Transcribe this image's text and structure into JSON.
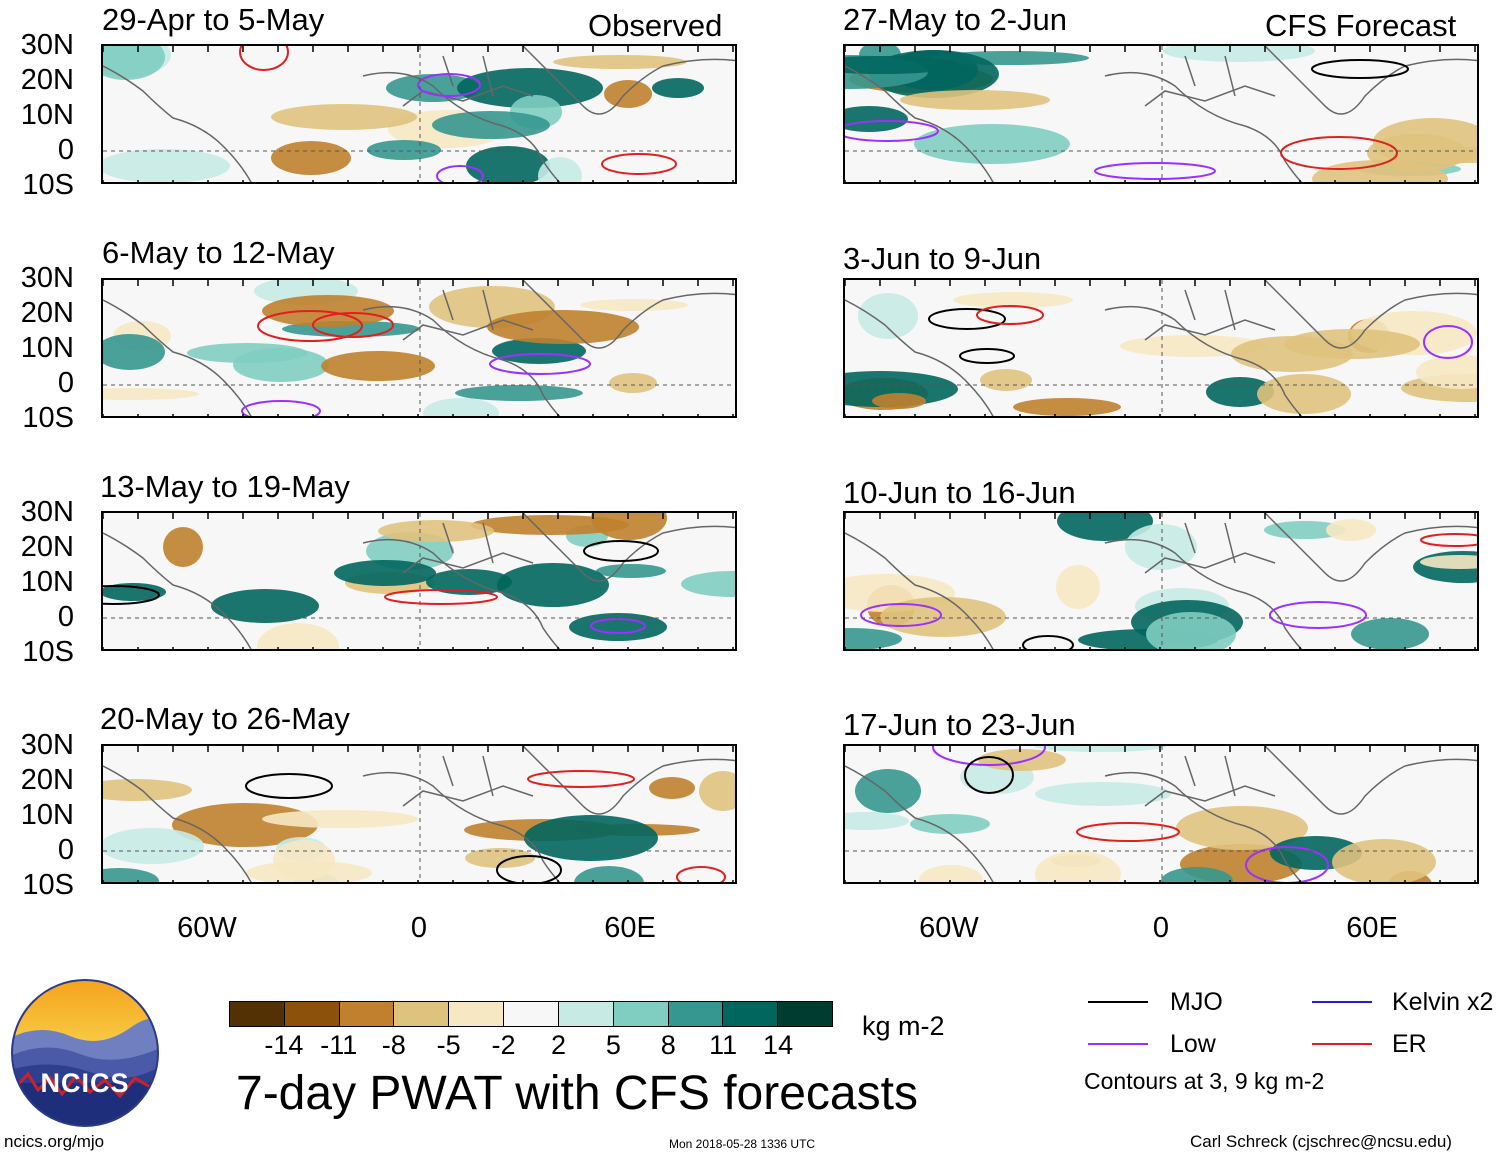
{
  "title": "7-day PWAT with CFS forecasts",
  "units": "kg m-2",
  "observed_label": "Observed",
  "forecast_label": "CFS Forecast",
  "panels_left": [
    {
      "period": "29-Apr to 5-May"
    },
    {
      "period": "6-May to 12-May"
    },
    {
      "period": "13-May to 19-May"
    },
    {
      "period": "20-May to 26-May"
    }
  ],
  "panels_right": [
    {
      "period": "27-May to 2-Jun"
    },
    {
      "period": "3-Jun to 9-Jun"
    },
    {
      "period": "10-Jun to 16-Jun"
    },
    {
      "period": "17-Jun to 23-Jun"
    }
  ],
  "lat_labels": [
    "30N",
    "20N",
    "10N",
    "0",
    "10S"
  ],
  "lon_labels": [
    "60W",
    "0",
    "60E"
  ],
  "colorbar": {
    "ticks": [
      "-14",
      "-11",
      "-8",
      "-5",
      "-2",
      "2",
      "5",
      "8",
      "11",
      "14"
    ],
    "colors": [
      "#543005",
      "#8c510a",
      "#bf812d",
      "#dfc27d",
      "#f6e8c3",
      "#f7f7f7",
      "#c7eae5",
      "#80cdc1",
      "#35978f",
      "#01665e",
      "#003c30"
    ]
  },
  "legend": {
    "mjo": {
      "label": "MJO",
      "color": "#000000"
    },
    "kelvin": {
      "label": "Kelvin x2",
      "color": "#2020d0"
    },
    "low": {
      "label": "Low",
      "color": "#9b30ff"
    },
    "er": {
      "label": "ER",
      "color": "#e02020"
    },
    "contours_note": "Contours at 3, 9 kg m-2"
  },
  "logo_text": "NCICS",
  "footer": {
    "url": "ncics.org/mjo",
    "timestamp": "Mon 2018-05-28 1336 UTC",
    "author": "Carl Schreck (cjschrec@ncsu.edu)"
  }
}
